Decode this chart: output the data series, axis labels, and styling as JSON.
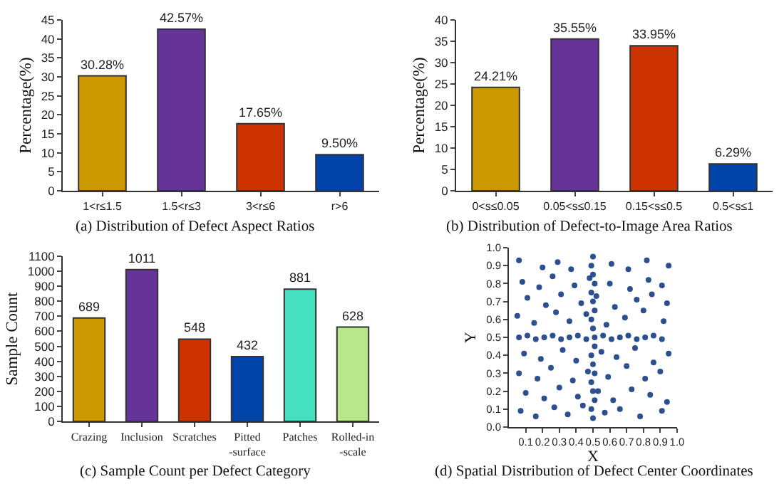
{
  "chart_data": [
    {
      "type": "bar",
      "title": "(a) Distribution of Defect Aspect Ratios",
      "ylabel": "Percentage(%)",
      "categories": [
        "1<r≤1.5",
        "1.5<r≤3",
        "3<r≤6",
        "r>6"
      ],
      "values": [
        30.28,
        42.57,
        17.65,
        9.5
      ],
      "colors": [
        "#cc9900",
        "#663399",
        "#cc3300",
        "#0044aa"
      ],
      "value_labels": [
        "30.28%",
        "42.57%",
        "17.65%",
        "9.50%"
      ],
      "ylim": [
        0,
        45
      ],
      "yticks": [
        0,
        5,
        10,
        15,
        20,
        25,
        30,
        35,
        40,
        45
      ]
    },
    {
      "type": "bar",
      "title": "(b) Distribution of Defect-to-Image Area Ratios",
      "ylabel": "Percentage(%)",
      "categories": [
        "0<s≤0.05",
        "0.05<s≤0.15",
        "0.15<s≤0.5",
        "0.5<s≤1"
      ],
      "values": [
        24.21,
        35.55,
        33.95,
        6.29
      ],
      "colors": [
        "#cc9900",
        "#663399",
        "#cc3300",
        "#0044aa"
      ],
      "value_labels": [
        "24.21%",
        "35.55%",
        "33.95%",
        "6.29%"
      ],
      "ylim": [
        0,
        40
      ],
      "yticks": [
        0,
        5,
        10,
        15,
        20,
        25,
        30,
        35,
        40
      ]
    },
    {
      "type": "bar",
      "title": "(c) Sample Count per Defect Category",
      "ylabel": "Sample Count",
      "categories": [
        "Crazing",
        "Inclusion",
        "Scratches",
        "Pitted-surface",
        "Patches",
        "Rolled-in-scale"
      ],
      "values": [
        689,
        1011,
        548,
        432,
        881,
        628
      ],
      "colors": [
        "#cc9900",
        "#663399",
        "#cc3300",
        "#0044aa",
        "#44e0c0",
        "#b8e68a"
      ],
      "data_labels": true,
      "ylim": [
        0,
        1100
      ],
      "yticks": [
        0,
        100,
        200,
        300,
        400,
        500,
        600,
        700,
        800,
        900,
        1000,
        1100
      ]
    },
    {
      "type": "scatter",
      "title": "(d) Spatial Distribution of Defect Center Coordinates",
      "xlabel": "X",
      "ylabel": "Y",
      "marker": "circle",
      "xlim": [
        0,
        1
      ],
      "ylim": [
        0,
        1
      ],
      "xticks": [
        0.1,
        0.2,
        0.3,
        0.4,
        0.5,
        0.6,
        0.7,
        0.8,
        0.9,
        {
          "value": 1,
          "label": "1.0"
        }
      ],
      "yticks": [
        {
          "value": 0,
          "label": "0.0"
        },
        0.1,
        0.2,
        0.3,
        0.4,
        0.5,
        0.6,
        0.7,
        0.8,
        0.9,
        {
          "value": 1,
          "label": "1.0"
        }
      ],
      "series": [
        {
          "color": "#2b4f8f",
          "x": [
            0.07,
            0.16,
            0.27,
            0.35,
            0.44,
            0.57,
            0.66,
            0.78,
            0.91,
            0.1,
            0.21,
            0.3,
            0.41,
            0.53,
            0.62,
            0.73,
            0.84,
            0.94,
            0.06,
            0.17,
            0.25,
            0.38,
            0.47,
            0.59,
            0.7,
            0.81,
            0.9,
            0.09,
            0.19,
            0.32,
            0.4,
            0.55,
            0.64,
            0.75,
            0.86,
            0.95,
            0.05,
            0.15,
            0.28,
            0.36,
            0.46,
            0.58,
            0.69,
            0.8,
            0.92,
            0.11,
            0.22,
            0.31,
            0.43,
            0.52,
            0.63,
            0.76,
            0.85,
            0.94,
            0.08,
            0.18,
            0.26,
            0.39,
            0.48,
            0.6,
            0.72,
            0.83,
            0.91,
            0.06,
            0.2,
            0.29,
            0.37,
            0.5,
            0.61,
            0.71,
            0.82,
            0.95,
            0.06,
            0.11,
            0.16,
            0.21,
            0.26,
            0.31,
            0.36,
            0.41,
            0.46,
            0.51,
            0.56,
            0.61,
            0.66,
            0.71,
            0.76,
            0.81,
            0.86,
            0.91,
            0.5,
            0.49,
            0.51,
            0.5,
            0.49,
            0.51,
            0.5,
            0.49,
            0.51,
            0.5,
            0.49,
            0.51,
            0.5,
            0.49,
            0.51,
            0.5,
            0.49
          ],
          "values": [
            0.09,
            0.06,
            0.11,
            0.07,
            0.12,
            0.08,
            0.1,
            0.06,
            0.09,
            0.19,
            0.16,
            0.22,
            0.17,
            0.2,
            0.15,
            0.21,
            0.18,
            0.14,
            0.3,
            0.27,
            0.33,
            0.26,
            0.31,
            0.28,
            0.34,
            0.27,
            0.31,
            0.41,
            0.38,
            0.43,
            0.37,
            0.42,
            0.39,
            0.44,
            0.36,
            0.41,
            0.62,
            0.58,
            0.64,
            0.59,
            0.63,
            0.57,
            0.61,
            0.65,
            0.59,
            0.72,
            0.68,
            0.74,
            0.69,
            0.73,
            0.67,
            0.71,
            0.74,
            0.69,
            0.81,
            0.78,
            0.84,
            0.79,
            0.83,
            0.8,
            0.77,
            0.82,
            0.79,
            0.93,
            0.89,
            0.92,
            0.88,
            0.95,
            0.91,
            0.88,
            0.93,
            0.9,
            0.5,
            0.51,
            0.49,
            0.5,
            0.51,
            0.49,
            0.5,
            0.51,
            0.49,
            0.5,
            0.51,
            0.49,
            0.5,
            0.51,
            0.49,
            0.5,
            0.51,
            0.49,
            0.05,
            0.1,
            0.15,
            0.2,
            0.25,
            0.3,
            0.35,
            0.4,
            0.45,
            0.55,
            0.6,
            0.65,
            0.7,
            0.75,
            0.8,
            0.85,
            0.9
          ]
        }
      ]
    }
  ]
}
